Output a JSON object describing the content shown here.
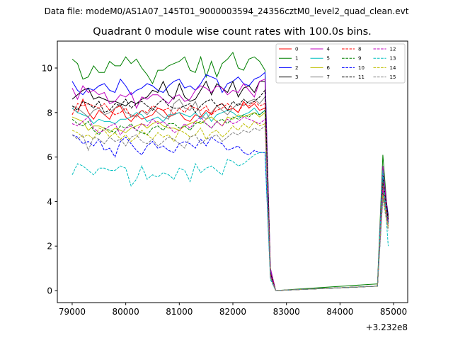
{
  "chart_data": {
    "type": "line",
    "suptitle": "Data file: modeM0/AS1A07_145T01_9000003594_24356cztM0_level2_quad_clean.evt",
    "title": "Quadrant 0 module wise count rates with 100.0s bins.",
    "xlabel": "",
    "ylabel": "",
    "x_offset_text": "+3.232e8",
    "xlim": [
      78723,
      85264
    ],
    "ylim": [
      -0.54,
      11.21
    ],
    "xticks": [
      79000,
      80000,
      81000,
      82000,
      83000,
      84000,
      85000
    ],
    "yticks": [
      0,
      2,
      4,
      6,
      8,
      10
    ],
    "legend_position": "top-right",
    "legend_columns": 4,
    "x": [
      79000,
      79100,
      79200,
      79300,
      79400,
      79500,
      79600,
      79700,
      79800,
      79900,
      80000,
      80100,
      80200,
      80300,
      80400,
      80500,
      80600,
      80700,
      80800,
      80900,
      81000,
      81100,
      81200,
      81300,
      81400,
      81500,
      81600,
      81700,
      81800,
      81900,
      82000,
      82100,
      82200,
      82300,
      82400,
      82500,
      82600,
      82700,
      82800,
      84700,
      84800,
      84900
    ],
    "series": [
      {
        "name": "0",
        "color": "#ff0000",
        "dash": false,
        "values": [
          8.2,
          8.0,
          8.6,
          8.0,
          7.7,
          8.1,
          7.9,
          7.7,
          8.2,
          8.3,
          7.8,
          7.6,
          7.9,
          7.7,
          7.8,
          7.9,
          8.2,
          8.1,
          7.8,
          7.9,
          8.0,
          7.7,
          7.6,
          7.9,
          7.8,
          8.1,
          7.9,
          8.3,
          8.4,
          8.1,
          8.2,
          8.0,
          8.5,
          8.2,
          8.4,
          8.1,
          8.2,
          0.8,
          0,
          0.2,
          4.8,
          3.2
        ]
      },
      {
        "name": "1",
        "color": "#008000",
        "dash": false,
        "values": [
          10.4,
          10.2,
          9.5,
          9.6,
          10.1,
          9.8,
          9.8,
          10.3,
          10.1,
          10.1,
          10.5,
          10.2,
          10.4,
          10.0,
          9.7,
          9.3,
          9.9,
          9.9,
          10.1,
          10.2,
          10.3,
          10.5,
          9.9,
          9.8,
          10.5,
          9.6,
          10.3,
          9.6,
          10.2,
          10.4,
          10.7,
          10.0,
          9.9,
          10.4,
          10.5,
          10.3,
          9.9,
          1.0,
          0,
          0.3,
          6.1,
          3.0
        ]
      },
      {
        "name": "2",
        "color": "#0000ff",
        "dash": false,
        "values": [
          9.4,
          9.0,
          8.8,
          9.1,
          9.0,
          9.2,
          9.3,
          9.0,
          8.9,
          9.5,
          9.2,
          8.8,
          9.0,
          9.1,
          9.3,
          9.2,
          9.0,
          8.9,
          9.2,
          9.4,
          9.5,
          9.1,
          9.2,
          9.0,
          9.3,
          9.7,
          9.6,
          9.5,
          8.9,
          9.3,
          9.4,
          9.6,
          9.3,
          9.2,
          9.5,
          9.6,
          9.8,
          0.9,
          0,
          0.2,
          5.2,
          3.4
        ]
      },
      {
        "name": "3",
        "color": "#000000",
        "dash": false,
        "values": [
          8.6,
          8.8,
          9.0,
          9.1,
          8.6,
          8.7,
          8.6,
          8.5,
          8.5,
          8.4,
          8.3,
          8.5,
          8.4,
          8.6,
          8.7,
          9.0,
          8.9,
          9.4,
          8.8,
          8.6,
          9.3,
          8.7,
          8.5,
          8.6,
          9.0,
          9.4,
          8.8,
          9.3,
          9.1,
          8.9,
          9.4,
          8.7,
          9.1,
          9.2,
          8.9,
          9.4,
          9.4,
          0.7,
          0,
          0.2,
          5.3,
          3.3
        ]
      },
      {
        "name": "4",
        "color": "#bf00bf",
        "dash": false,
        "values": [
          9.1,
          8.6,
          9.2,
          8.9,
          9.0,
          8.8,
          8.9,
          8.4,
          8.5,
          8.8,
          8.7,
          8.9,
          8.2,
          8.7,
          8.6,
          8.8,
          8.8,
          8.6,
          8.4,
          8.7,
          8.8,
          8.5,
          8.6,
          9.0,
          9.2,
          9.1,
          8.9,
          9.2,
          9.1,
          8.8,
          9.0,
          8.9,
          9.3,
          9.0,
          8.7,
          9.4,
          9.5,
          1.0,
          0,
          0.2,
          5.6,
          3.1
        ]
      },
      {
        "name": "5",
        "color": "#00bfbf",
        "dash": false,
        "values": [
          8.2,
          8.0,
          7.9,
          7.8,
          7.5,
          7.7,
          7.6,
          7.6,
          7.5,
          7.7,
          7.7,
          7.8,
          8.0,
          7.9,
          7.6,
          7.7,
          7.8,
          7.6,
          7.9,
          7.9,
          8.0,
          7.9,
          7.8,
          8.0,
          7.7,
          8.0,
          7.6,
          7.9,
          8.0,
          8.1,
          8.0,
          7.8,
          7.9,
          8.0,
          8.2,
          7.9,
          8.1,
          0.6,
          0,
          0.2,
          5.0,
          3.0
        ]
      },
      {
        "name": "6",
        "color": "#bfbf00",
        "dash": false,
        "values": [
          7.8,
          7.7,
          7.6,
          7.2,
          7.4,
          7.4,
          7.3,
          7.1,
          7.3,
          7.2,
          7.1,
          7.3,
          7.4,
          7.5,
          7.3,
          7.5,
          7.6,
          7.4,
          7.3,
          7.3,
          7.2,
          7.4,
          7.5,
          7.6,
          7.5,
          7.7,
          7.8,
          7.6,
          7.4,
          7.8,
          7.7,
          7.9,
          7.8,
          7.9,
          8.0,
          7.8,
          8.0,
          0.7,
          0,
          0.2,
          4.5,
          2.9
        ]
      },
      {
        "name": "7",
        "color": "#808080",
        "dash": false,
        "values": [
          8.3,
          8.2,
          8.0,
          7.8,
          8.1,
          8.2,
          7.9,
          8.0,
          8.2,
          8.4,
          8.0,
          7.9,
          7.8,
          8.1,
          7.9,
          8.2,
          8.0,
          7.8,
          7.7,
          8.4,
          8.6,
          8.2,
          8.1,
          8.5,
          7.9,
          7.7,
          8.0,
          8.3,
          8.1,
          7.9,
          8.2,
          8.4,
          8.3,
          8.5,
          8.6,
          8.4,
          8.7,
          0.7,
          0,
          0.2,
          4.7,
          2.8
        ]
      },
      {
        "name": "8",
        "color": "#ff0000",
        "dash": true,
        "values": [
          7.9,
          8.4,
          8.3,
          8.4,
          8.3,
          8.2,
          8.4,
          8.1,
          7.9,
          8.0,
          8.2,
          7.8,
          7.9,
          8.1,
          8.0,
          8.3,
          8.2,
          8.1,
          8.2,
          7.9,
          8.2,
          8.0,
          8.3,
          8.2,
          8.1,
          8.3,
          7.9,
          8.1,
          8.2,
          8.4,
          8.2,
          8.0,
          8.4,
          8.3,
          8.5,
          8.3,
          8.4,
          0.8,
          0,
          0.2,
          4.9,
          3.1
        ]
      },
      {
        "name": "9",
        "color": "#008000",
        "dash": true,
        "values": [
          7.7,
          7.5,
          7.4,
          7.6,
          7.2,
          7.0,
          7.3,
          7.2,
          7.1,
          7.4,
          7.3,
          7.5,
          7.2,
          7.1,
          7.0,
          7.3,
          7.4,
          7.2,
          7.5,
          7.5,
          7.3,
          7.4,
          7.2,
          7.5,
          7.6,
          7.5,
          7.3,
          7.6,
          7.7,
          7.5,
          7.8,
          7.7,
          7.9,
          7.8,
          8.0,
          7.9,
          8.1,
          0.7,
          0,
          0.2,
          4.4,
          3.0
        ]
      },
      {
        "name": "10",
        "color": "#0000ff",
        "dash": true,
        "values": [
          7.0,
          6.9,
          6.6,
          6.7,
          6.5,
          6.8,
          6.3,
          6.4,
          6.0,
          6.7,
          6.9,
          6.6,
          6.3,
          6.1,
          6.5,
          6.7,
          6.4,
          6.5,
          6.3,
          6.2,
          6.6,
          6.7,
          6.6,
          6.4,
          6.8,
          6.5,
          6.9,
          6.7,
          6.6,
          6.3,
          6.4,
          6.5,
          6.2,
          6.1,
          6.3,
          6.2,
          6.2,
          0.6,
          0,
          0.2,
          4.2,
          3.1
        ]
      },
      {
        "name": "11",
        "color": "#000000",
        "dash": true,
        "values": [
          8.3,
          8.1,
          8.5,
          8.4,
          8.2,
          8.5,
          8.0,
          8.1,
          8.4,
          8.3,
          8.6,
          8.2,
          8.4,
          8.5,
          8.3,
          8.1,
          8.4,
          8.6,
          8.3,
          8.2,
          8.2,
          8.3,
          8.4,
          8.0,
          8.3,
          8.5,
          8.6,
          8.3,
          8.4,
          8.1,
          8.5,
          8.3,
          8.6,
          8.4,
          8.5,
          8.7,
          9.0,
          0.8,
          0,
          0.2,
          5.0,
          3.2
        ]
      },
      {
        "name": "12",
        "color": "#bf00bf",
        "dash": true,
        "values": [
          7.5,
          7.4,
          7.6,
          7.8,
          7.3,
          7.1,
          7.2,
          7.4,
          7.5,
          7.0,
          7.3,
          7.4,
          7.2,
          7.5,
          7.4,
          7.7,
          7.5,
          7.6,
          7.4,
          7.1,
          7.2,
          7.5,
          7.3,
          7.6,
          7.8,
          7.5,
          7.3,
          7.6,
          7.4,
          7.7,
          7.5,
          7.6,
          7.8,
          7.7,
          7.6,
          7.5,
          7.7,
          0.7,
          0,
          0.2,
          4.6,
          2.9
        ]
      },
      {
        "name": "13",
        "color": "#00bfbf",
        "dash": true,
        "values": [
          5.2,
          5.7,
          5.6,
          5.4,
          5.2,
          5.5,
          5.5,
          5.4,
          5.4,
          5.6,
          5.5,
          4.7,
          5.0,
          5.6,
          5.0,
          5.2,
          5.1,
          5.3,
          5.2,
          5.0,
          5.5,
          5.4,
          4.9,
          5.7,
          5.3,
          5.5,
          5.6,
          5.4,
          5.2,
          5.9,
          5.8,
          5.6,
          5.7,
          5.9,
          6.1,
          6.2,
          6.2,
          0.5,
          0,
          0.2,
          5.4,
          2.0
        ]
      },
      {
        "name": "14",
        "color": "#bfbf00",
        "dash": true,
        "values": [
          7.2,
          7.1,
          6.9,
          7.0,
          6.8,
          7.3,
          7.2,
          6.9,
          7.1,
          6.8,
          7.0,
          6.7,
          6.9,
          7.2,
          7.0,
          6.8,
          7.1,
          6.9,
          7.0,
          6.7,
          7.2,
          7.1,
          6.9,
          7.0,
          7.3,
          6.8,
          7.1,
          7.2,
          6.9,
          7.1,
          7.4,
          7.2,
          7.5,
          7.3,
          7.6,
          7.4,
          7.5,
          0.6,
          0,
          0.2,
          4.3,
          2.8
        ]
      },
      {
        "name": "15",
        "color": "#808080",
        "dash": true,
        "values": [
          7.0,
          6.8,
          7.0,
          6.3,
          6.9,
          6.8,
          6.6,
          6.9,
          6.7,
          6.8,
          6.5,
          6.9,
          7.0,
          6.7,
          6.6,
          6.8,
          6.5,
          6.7,
          6.9,
          6.8,
          6.6,
          6.4,
          6.9,
          7.0,
          6.6,
          6.8,
          6.9,
          7.0,
          6.7,
          6.9,
          7.1,
          7.0,
          7.2,
          7.1,
          7.3,
          7.2,
          7.4,
          0.6,
          0,
          0.2,
          4.1,
          2.7
        ]
      }
    ]
  }
}
